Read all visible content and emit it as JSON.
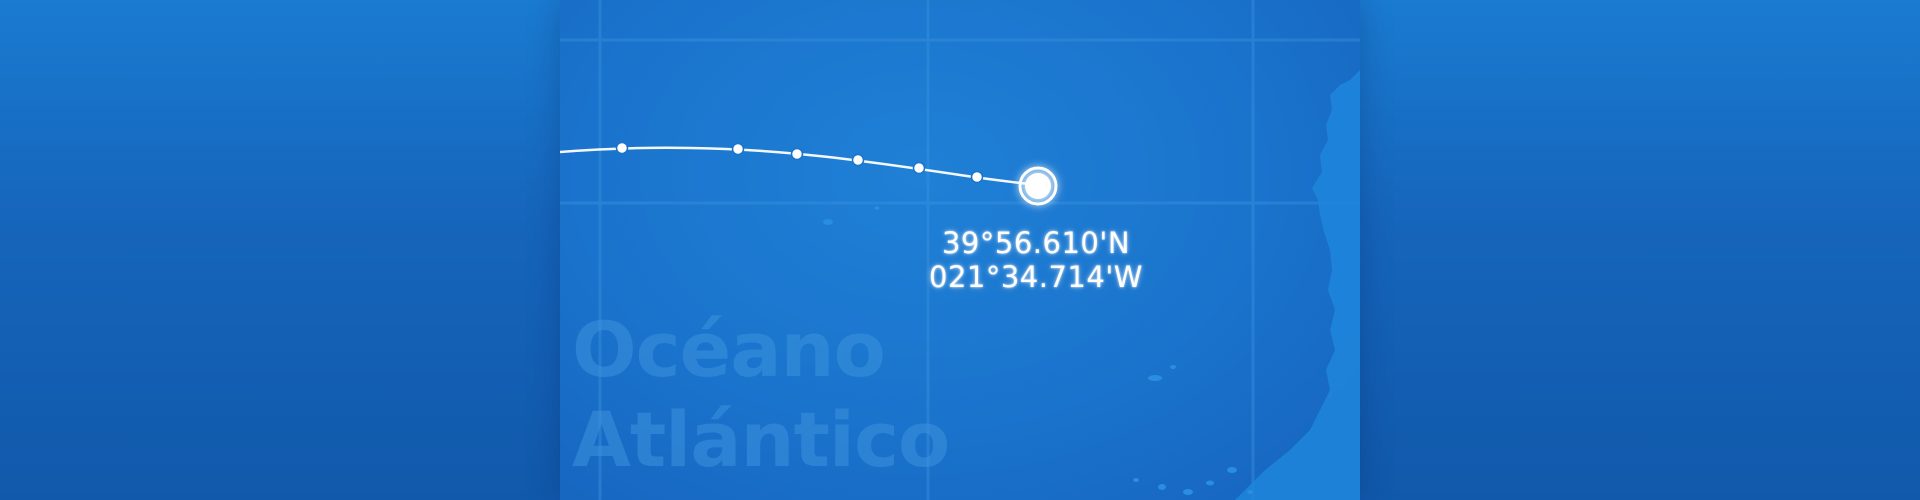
{
  "map": {
    "ocean_label_line1": "Océano",
    "ocean_label_line2": "Atlántico",
    "coordinates": {
      "latitude": "39°56.610'N",
      "longitude": "021°34.714'W"
    },
    "colors": {
      "outer_background": "#1565bb",
      "panel_background": "#1a73cc",
      "track_line": "#ffffff",
      "land": "#1e86dc",
      "grid_line": "#3a92de"
    },
    "icons": {
      "current_position": "current-position-marker",
      "track_point": "track-waypoint"
    }
  }
}
